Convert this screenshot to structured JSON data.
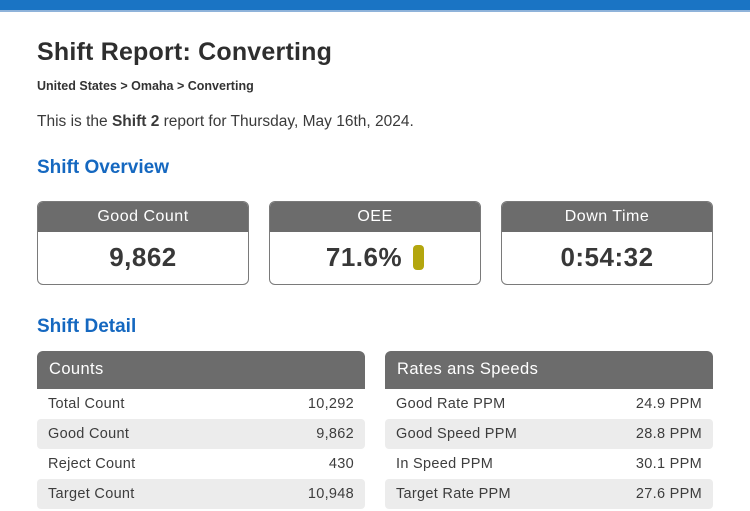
{
  "topbar": {
    "color": "#1a74c4"
  },
  "header": {
    "title": "Shift Report: Converting",
    "breadcrumb": "United States > Omaha > Converting",
    "intro": {
      "prefix": "This is the ",
      "shift": "Shift 2",
      "suffix": " report for Thursday, May 16th, 2024."
    }
  },
  "overview": {
    "heading": "Shift Overview",
    "cards": [
      {
        "label": "Good Count",
        "value": "9,862"
      },
      {
        "label": "OEE",
        "value": "71.6%",
        "indicator_color": "#b3a60e"
      },
      {
        "label": "Down Time",
        "value": "0:54:32"
      }
    ]
  },
  "detail": {
    "heading": "Shift Detail",
    "tables": [
      {
        "title": "Counts",
        "rows": [
          [
            "Total Count",
            "10,292"
          ],
          [
            "Good Count",
            "9,862"
          ],
          [
            "Reject Count",
            "430"
          ],
          [
            "Target Count",
            "10,948"
          ]
        ]
      },
      {
        "title": "Rates ans Speeds",
        "rows": [
          [
            "Good Rate PPM",
            "24.9 PPM"
          ],
          [
            "Good Speed PPM",
            "28.8 PPM"
          ],
          [
            "In Speed PPM",
            "30.1 PPM"
          ],
          [
            "Target Rate PPM",
            "27.6 PPM"
          ]
        ]
      }
    ]
  },
  "colors": {
    "topbar_blue": "#1a74c4",
    "topbar_underline": "#8fb3da",
    "heading_blue": "#1568c0",
    "header_gray": "#6c6c6c",
    "stripe_gray": "#ececec",
    "oee_indicator": "#b3a60e"
  }
}
